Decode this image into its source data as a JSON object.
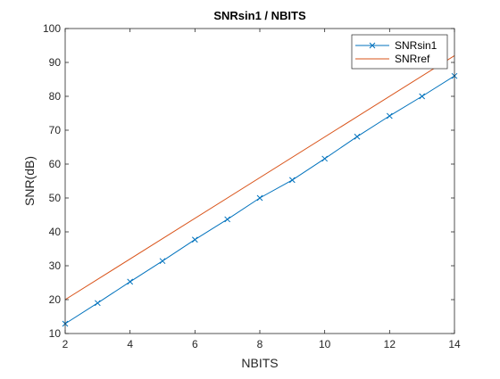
{
  "chart_data": {
    "type": "line",
    "title": "SNRsin1 / NBITS",
    "xlabel": "NBITS",
    "ylabel": "SNR(dB)",
    "xlim": [
      2,
      14
    ],
    "ylim": [
      10,
      100
    ],
    "xticks": [
      2,
      4,
      6,
      8,
      10,
      12,
      14
    ],
    "yticks": [
      10,
      20,
      30,
      40,
      50,
      60,
      70,
      80,
      90,
      100
    ],
    "grid": false,
    "legend_position": "top-right",
    "series": [
      {
        "name": "SNRsin1",
        "color": "#0072BD",
        "marker": "x",
        "x": [
          2,
          3,
          4,
          5,
          6,
          7,
          8,
          9,
          10,
          11,
          12,
          13,
          14
        ],
        "y": [
          12.9,
          19.0,
          25.3,
          31.4,
          37.7,
          43.7,
          50.0,
          55.3,
          61.6,
          68.1,
          74.2,
          80.0,
          86.0
        ]
      },
      {
        "name": "SNRref",
        "color": "#D95319",
        "marker": "none",
        "x": [
          2,
          14
        ],
        "y": [
          20,
          92
        ]
      }
    ]
  }
}
